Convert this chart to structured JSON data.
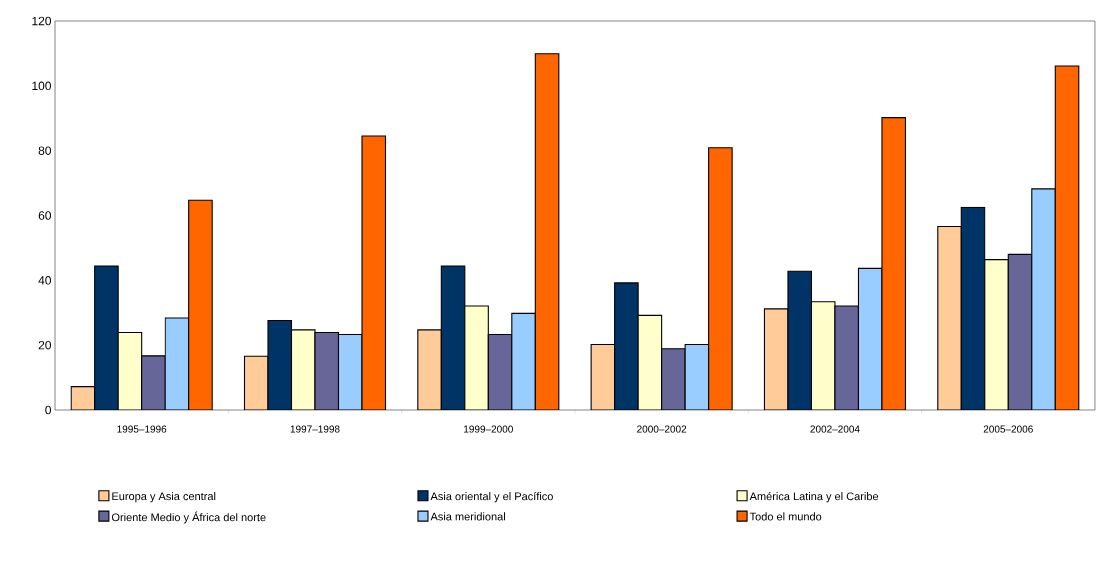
{
  "chart_data": {
    "type": "bar",
    "categories": [
      "1995–1996",
      "1997–1998",
      "1999–2000",
      "2000–2002",
      "2002–2004",
      "2005–2006"
    ],
    "series": [
      {
        "name": "Europa y Asia central",
        "color": "#ffcc99",
        "values": [
          7.2,
          16.6,
          24.7,
          20.2,
          31.2,
          56.6
        ]
      },
      {
        "name": "Asia oriental y el Pacífico",
        "color": "#003366",
        "values": [
          44.4,
          27.6,
          44.4,
          39.2,
          42.8,
          62.5
        ]
      },
      {
        "name": "América Latina y el Caribe",
        "color": "#ffffcc",
        "values": [
          23.9,
          24.7,
          32.1,
          29.2,
          33.4,
          46.4
        ]
      },
      {
        "name": "Oriente Medio y África del norte",
        "color": "#666699",
        "values": [
          16.7,
          23.9,
          23.3,
          18.9,
          32.1,
          48.0
        ]
      },
      {
        "name": "Asia meridional",
        "color": "#99ccff",
        "values": [
          28.4,
          23.3,
          29.8,
          20.2,
          43.7,
          68.2
        ]
      },
      {
        "name": "Todo el mundo",
        "color": "#ff6600",
        "values": [
          64.7,
          84.5,
          109.9,
          80.9,
          90.2,
          106.1
        ]
      }
    ],
    "ylim": [
      0,
      120
    ],
    "yticks": [
      0,
      20,
      40,
      60,
      80,
      100,
      120
    ],
    "grid": false,
    "legend": "bottom"
  }
}
